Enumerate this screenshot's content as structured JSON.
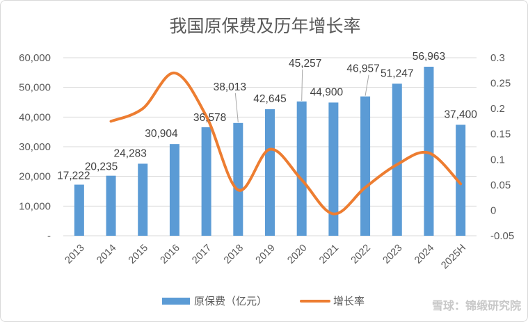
{
  "chart_data": {
    "type": "bar",
    "title": "我国原保费及历年增长率",
    "categories": [
      "2013",
      "2014",
      "2015",
      "2016",
      "2017",
      "2018",
      "2019",
      "2020",
      "2021",
      "2022",
      "2023",
      "2024",
      "2025H"
    ],
    "series": [
      {
        "name": "原保费（亿元）",
        "type": "bar",
        "axis": "left",
        "values": [
          17222,
          20235,
          24283,
          30904,
          36578,
          38013,
          42645,
          45257,
          44900,
          46957,
          51247,
          56963,
          37400
        ],
        "labels": [
          "17,222",
          "20,235",
          "24,283",
          "30,904",
          "36,578",
          "38,013",
          "42,645",
          "45,257",
          "44,900",
          "46,957",
          "51,247",
          "56,963",
          "37,400"
        ]
      },
      {
        "name": "增长率",
        "type": "line",
        "axis": "right",
        "smooth": true,
        "values": [
          null,
          0.175,
          0.2,
          0.27,
          0.185,
          0.04,
          0.12,
          0.06,
          -0.007,
          0.045,
          0.09,
          0.113,
          0.052
        ]
      }
    ],
    "left_axis": {
      "ylim": [
        0,
        60000
      ],
      "ticks": [
        0,
        10000,
        20000,
        30000,
        40000,
        50000,
        60000
      ],
      "tick_labels": [
        "-",
        "10,000",
        "20,000",
        "30,000",
        "40,000",
        "50,000",
        "60,000"
      ]
    },
    "right_axis": {
      "ylim": [
        -0.05,
        0.3
      ],
      "ticks": [
        -0.05,
        0,
        0.05,
        0.1,
        0.15,
        0.2,
        0.25,
        0.3
      ],
      "tick_labels": [
        "-0.05",
        "0",
        "0.05",
        "0.1",
        "0.15",
        "0.2",
        "0.25",
        "0.3"
      ]
    },
    "grid": true,
    "legend": "bottom",
    "colors": {
      "bar": "#5b9bd5",
      "line": "#ed7d31",
      "grid": "#d9d9d9",
      "text": "#595959"
    }
  },
  "watermark": "雪球：锦缎研究院"
}
